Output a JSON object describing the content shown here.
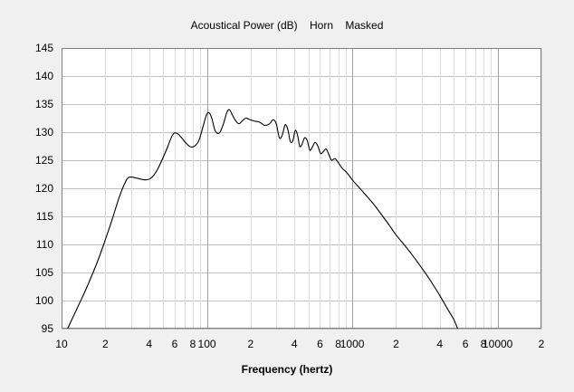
{
  "chart_data": {
    "type": "line",
    "title": "Acoustical Power (dB)    Horn    Masked",
    "xlabel": "Frequency (hertz)",
    "ylabel": "",
    "x_scale": "log",
    "xlim": [
      10,
      20000
    ],
    "ylim": [
      95,
      145
    ],
    "grid": true,
    "legend": "none",
    "colors": {
      "background": "#f0f0f0",
      "plot_bg": "#ffffff",
      "grid": "#c0c0c0",
      "line": "#000000",
      "axis": "#808080"
    },
    "y_ticks": [
      95,
      100,
      105,
      110,
      115,
      120,
      125,
      130,
      135,
      140,
      145
    ],
    "x_tick_labels": [
      {
        "x": 10,
        "label": "10"
      },
      {
        "x": 20,
        "label": "2"
      },
      {
        "x": 40,
        "label": "4"
      },
      {
        "x": 60,
        "label": "6"
      },
      {
        "x": 80,
        "label": "8"
      },
      {
        "x": 100,
        "label": "100"
      },
      {
        "x": 200,
        "label": "2"
      },
      {
        "x": 400,
        "label": "4"
      },
      {
        "x": 600,
        "label": "6"
      },
      {
        "x": 800,
        "label": "8"
      },
      {
        "x": 1000,
        "label": "1000"
      },
      {
        "x": 2000,
        "label": "2"
      },
      {
        "x": 4000,
        "label": "4"
      },
      {
        "x": 6000,
        "label": "6"
      },
      {
        "x": 8000,
        "label": "8"
      },
      {
        "x": 10000,
        "label": "10000"
      },
      {
        "x": 20000,
        "label": "2"
      }
    ],
    "series": [
      {
        "points": [
          [
            11,
            95
          ],
          [
            13,
            99
          ],
          [
            15,
            102.5
          ],
          [
            18,
            107.5
          ],
          [
            22,
            114
          ],
          [
            25,
            118.5
          ],
          [
            28,
            121.5
          ],
          [
            30,
            122
          ],
          [
            33,
            121.8
          ],
          [
            38,
            121.5
          ],
          [
            42,
            122
          ],
          [
            46,
            123.5
          ],
          [
            52,
            126.5
          ],
          [
            58,
            129.5
          ],
          [
            62,
            129.8
          ],
          [
            66,
            129.2
          ],
          [
            72,
            128
          ],
          [
            77,
            127.4
          ],
          [
            82,
            127.5
          ],
          [
            88,
            128.5
          ],
          [
            94,
            131
          ],
          [
            99,
            133
          ],
          [
            103,
            133.5
          ],
          [
            108,
            132.5
          ],
          [
            113,
            130.5
          ],
          [
            118,
            129.8
          ],
          [
            123,
            130
          ],
          [
            130,
            131.5
          ],
          [
            137,
            133.5
          ],
          [
            143,
            134
          ],
          [
            150,
            133
          ],
          [
            158,
            132
          ],
          [
            166,
            131.5
          ],
          [
            175,
            132
          ],
          [
            185,
            132.5
          ],
          [
            195,
            132.3
          ],
          [
            210,
            132
          ],
          [
            230,
            131.8
          ],
          [
            250,
            131.2
          ],
          [
            270,
            131.5
          ],
          [
            285,
            132.2
          ],
          [
            300,
            131.5
          ],
          [
            315,
            129
          ],
          [
            330,
            129.5
          ],
          [
            345,
            131.3
          ],
          [
            360,
            130.5
          ],
          [
            375,
            128.3
          ],
          [
            390,
            128.5
          ],
          [
            405,
            130.3
          ],
          [
            420,
            129.5
          ],
          [
            435,
            127.5
          ],
          [
            450,
            127.8
          ],
          [
            470,
            129
          ],
          [
            490,
            128.5
          ],
          [
            510,
            126.8
          ],
          [
            530,
            127.3
          ],
          [
            555,
            128.2
          ],
          [
            580,
            127.5
          ],
          [
            605,
            126.2
          ],
          [
            630,
            126.5
          ],
          [
            660,
            127
          ],
          [
            690,
            126
          ],
          [
            720,
            125
          ],
          [
            760,
            125.3
          ],
          [
            800,
            124.6
          ],
          [
            850,
            123.6
          ],
          [
            900,
            123
          ],
          [
            950,
            122.3
          ],
          [
            1000,
            121.5
          ],
          [
            1100,
            120.3
          ],
          [
            1200,
            119.2
          ],
          [
            1400,
            117.2
          ],
          [
            1600,
            115.2
          ],
          [
            1800,
            113.4
          ],
          [
            2000,
            111.7
          ],
          [
            2400,
            109.2
          ],
          [
            2800,
            106.9
          ],
          [
            3200,
            104.8
          ],
          [
            3600,
            102.8
          ],
          [
            4000,
            100.9
          ],
          [
            4500,
            98.6
          ],
          [
            5000,
            96.6
          ],
          [
            5300,
            95
          ]
        ]
      }
    ]
  }
}
